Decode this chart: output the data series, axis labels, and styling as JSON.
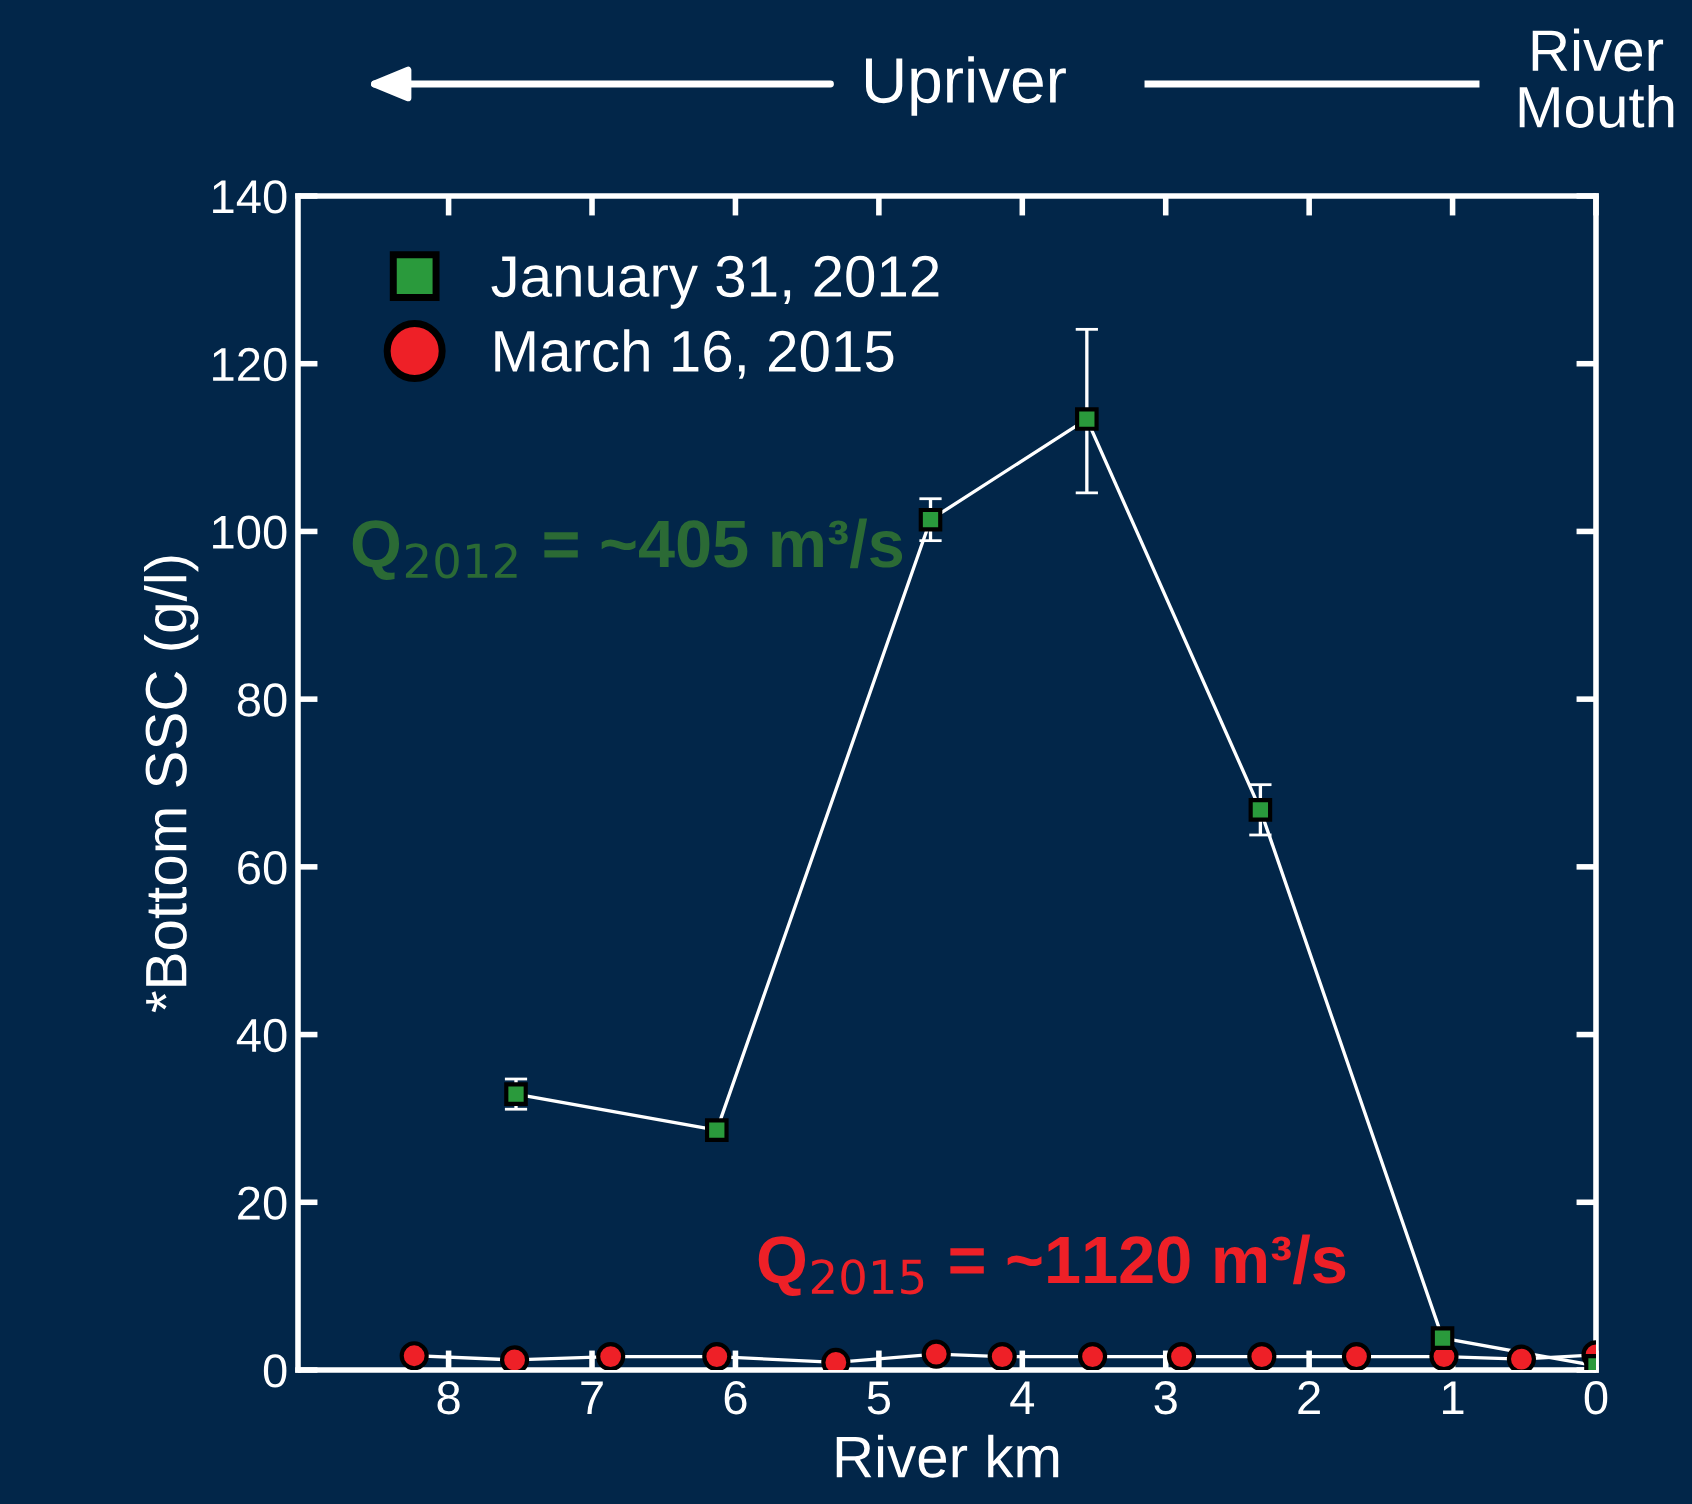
{
  "chart_data": {
    "type": "line",
    "xlabel": "River km",
    "ylabel": "*Bottom SSC (g/l)",
    "xlim": [
      9.05,
      0
    ],
    "xticks": [
      8,
      7,
      6,
      5,
      4,
      3,
      2,
      1,
      0
    ],
    "ylim": [
      0,
      140
    ],
    "yticks": [
      0,
      20,
      40,
      60,
      80,
      100,
      120,
      140
    ],
    "grid": false,
    "legend": "top left",
    "annotations": [
      "Q$_{2012}$ = ~405 m³/s",
      "Q$_{2015}$ = ~1120 m³/s",
      "Upriver",
      "River\nMouth"
    ],
    "series": [
      {
        "name": "January 31, 2012",
        "color": "#2a9a3c",
        "marker": "square",
        "x": [
          7.53,
          6.13,
          4.64,
          3.55,
          2.34,
          1.07,
          0
        ],
        "values": [
          32.9,
          28.6,
          101.4,
          113.4,
          66.8,
          3.8,
          0.5
        ],
        "errors": [
          1.8,
          null,
          2.5,
          [
            104.6,
            124.1
          ],
          3,
          null,
          null
        ]
      },
      {
        "name": "March 16, 2015",
        "color": "#ee2027",
        "marker": "circle",
        "x": [
          8.24,
          7.54,
          6.87,
          6.13,
          5.3,
          4.6,
          4.14,
          3.51,
          2.89,
          2.33,
          1.67,
          1.06,
          0.52,
          0
        ],
        "values": [
          1.7,
          1.2,
          1.6,
          1.6,
          0.9,
          1.9,
          1.6,
          1.6,
          1.6,
          1.6,
          1.6,
          1.6,
          1.3,
          1.8
        ]
      }
    ]
  }
}
